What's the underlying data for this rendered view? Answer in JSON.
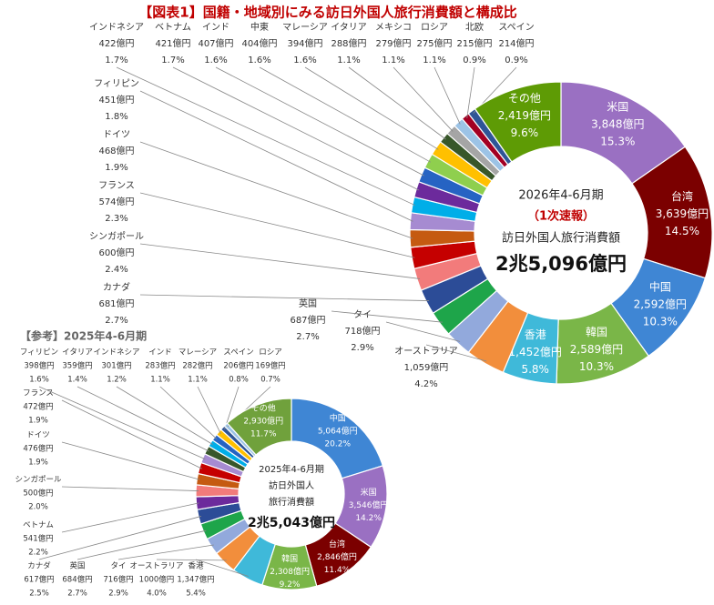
{
  "chart_data": [
    {
      "type": "donut",
      "title": "【図表1】国籍・地域別にみる訪日外国人旅行消費額と構成比",
      "center_text": [
        "2026年4-6月期",
        "（1次速報）",
        "訪日外国人旅行消費額",
        "2兆5,096億円"
      ],
      "categories": [
        "米国",
        "台湾",
        "中国",
        "韓国",
        "香港",
        "オーストラリア",
        "タイ",
        "英国",
        "カナダ",
        "シンガポール",
        "フランス",
        "ドイツ",
        "フィリピン",
        "インドネシア",
        "ベトナム",
        "インド",
        "中東",
        "マレーシア",
        "イタリア",
        "メキシコ",
        "ロシア",
        "北欧",
        "スペイン",
        "その他"
      ],
      "values": [
        3848,
        3639,
        2592,
        2589,
        1452,
        1059,
        718,
        687,
        681,
        600,
        574,
        468,
        451,
        422,
        421,
        407,
        404,
        394,
        288,
        279,
        275,
        215,
        214,
        2419
      ],
      "value_labels": [
        "3,848億円",
        "3,639億円",
        "2,592億円",
        "2,589億円",
        "1,452億円",
        "1,059億円",
        "718億円",
        "687億円",
        "681億円",
        "600億円",
        "574億円",
        "468億円",
        "451億円",
        "422億円",
        "421億円",
        "407億円",
        "404億円",
        "394億円",
        "288億円",
        "279億円",
        "275億円",
        "215億円",
        "214億円",
        "2,419億円"
      ],
      "shares": [
        15.3,
        14.5,
        10.3,
        10.3,
        5.8,
        4.2,
        2.9,
        2.7,
        2.7,
        2.4,
        2.3,
        1.9,
        1.8,
        1.7,
        1.7,
        1.6,
        1.6,
        1.6,
        1.1,
        1.1,
        1.1,
        0.9,
        0.9,
        9.6
      ],
      "share_labels": [
        "15.3%",
        "14.5%",
        "10.3%",
        "10.3%",
        "5.8%",
        "4.2%",
        "2.9%",
        "2.7%",
        "2.7%",
        "2.4%",
        "2.3%",
        "1.9%",
        "1.8%",
        "1.7%",
        "1.7%",
        "1.6%",
        "1.6%",
        "1.6%",
        "1.1%",
        "1.1%",
        "1.1%",
        "0.9%",
        "0.9%",
        "9.6%"
      ],
      "colors": [
        "#9a70c2",
        "#7b0000",
        "#3f86d4",
        "#7ab648",
        "#3fb9d9",
        "#f28e3c",
        "#92a9dc",
        "#1ea54a",
        "#2c4c97",
        "#f27b7b",
        "#c50000",
        "#c55a11",
        "#a68bd1",
        "#00aee8",
        "#6c2a9c",
        "#2663c3",
        "#8fcf4e",
        "#ffc000",
        "#38572a",
        "#a5a5a5",
        "#9cc3e6",
        "#a30023",
        "#2f5597",
        "#5e9b05"
      ]
    },
    {
      "type": "donut",
      "title": "【参考】2025年4-6月期",
      "center_text": [
        "2025年4-6月期",
        "訪日外国人",
        "旅行消費額",
        "2兆5,043億円"
      ],
      "categories": [
        "中国",
        "米国",
        "台湾",
        "韓国",
        "香港",
        "オーストラリア",
        "タイ",
        "英国",
        "カナダ",
        "ベトナム",
        "シンガポール",
        "ドイツ",
        "フランス",
        "フィリピン",
        "イタリア",
        "インドネシア",
        "インド",
        "マレーシア",
        "スペイン",
        "ロシア",
        "その他"
      ],
      "values": [
        5064,
        3546,
        2846,
        2308,
        1347,
        1000,
        716,
        684,
        617,
        541,
        500,
        476,
        472,
        398,
        359,
        301,
        283,
        282,
        206,
        169,
        2930
      ],
      "value_labels": [
        "5,064億円",
        "3,546億円",
        "2,846億円",
        "2,308億円",
        "1,347億円",
        "1000億円",
        "716億円",
        "684億円",
        "617億円",
        "541億円",
        "500億円",
        "476億円",
        "472億円",
        "398億円",
        "359億円",
        "301億円",
        "283億円",
        "282億円",
        "206億円",
        "169億円",
        "2,930億円"
      ],
      "shares": [
        20.2,
        14.2,
        11.4,
        9.2,
        5.4,
        4.0,
        2.9,
        2.7,
        2.5,
        2.2,
        2.0,
        1.9,
        1.9,
        1.6,
        1.4,
        1.2,
        1.1,
        1.1,
        0.8,
        0.7,
        11.7
      ],
      "share_labels": [
        "20.2%",
        "14.2%",
        "11.4%",
        "9.2%",
        "5.4%",
        "4.0%",
        "2.9%",
        "2.7%",
        "2.5%",
        "2.2%",
        "2.0%",
        "1.9%",
        "1.9%",
        "1.6%",
        "1.4%",
        "1.2%",
        "1.1%",
        "1.1%",
        "0.8%",
        "0.7%",
        "11.7%"
      ],
      "colors": [
        "#3f86d4",
        "#9a70c2",
        "#7b0000",
        "#7ab648",
        "#3fb9d9",
        "#f28e3c",
        "#92a9dc",
        "#1ea54a",
        "#2c4c97",
        "#6c2a9c",
        "#f27b7b",
        "#c55a11",
        "#c50000",
        "#a68bd1",
        "#38572a",
        "#00aee8",
        "#2663c3",
        "#ffc000",
        "#2f5597",
        "#9cc3e6",
        "#70a13c"
      ]
    }
  ]
}
